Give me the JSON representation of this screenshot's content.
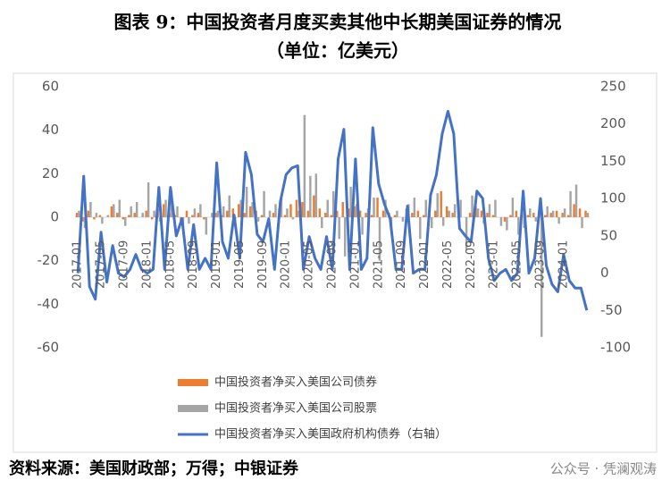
{
  "chart_data": {
    "type": "bar",
    "title": "图表 9：中国投资者月度买卖其他中长期美国证券的情况",
    "subtitle": "（单位：亿美元）",
    "source": "资料来源：美国财政部；万得；中银证券",
    "watermark": "公众号 · 凭澜观涛",
    "categories": [
      "2017-01",
      null,
      null,
      null,
      "2017-05",
      null,
      null,
      null,
      "2017-09",
      null,
      null,
      null,
      "2018-01",
      null,
      null,
      null,
      "2018-05",
      null,
      null,
      null,
      "2018-09",
      null,
      null,
      null,
      "2019-01",
      null,
      null,
      null,
      "2019-05",
      null,
      null,
      null,
      "2019-09",
      null,
      null,
      null,
      "2020-01",
      null,
      null,
      null,
      "2020-05",
      null,
      null,
      null,
      "2020-09",
      null,
      null,
      null,
      "2021-01",
      null,
      null,
      null,
      "2021-05",
      null,
      null,
      null,
      "2021-09",
      null,
      null,
      null,
      "2022-01",
      null,
      null,
      null,
      "2022-05",
      null,
      null,
      null,
      "2022-09",
      null,
      null,
      null,
      "2023-01",
      null,
      null,
      null,
      "2023-05",
      null,
      null,
      null,
      "2023-09",
      null,
      null,
      null,
      "2024-01",
      null,
      null,
      null,
      null
    ],
    "series": [
      {
        "name": "中国投资者净买入美国公司债券",
        "type": "bar",
        "color": "#ed7d31",
        "values": [
          2,
          -2,
          3,
          -1,
          1,
          0,
          5,
          2,
          -1,
          1,
          2,
          0,
          3,
          -1,
          4,
          6,
          2,
          1,
          -2,
          3,
          1,
          2,
          -1,
          0,
          2,
          1,
          3,
          4,
          6,
          2,
          5,
          3,
          1,
          0,
          2,
          4,
          1,
          6,
          8,
          7,
          3,
          10,
          4,
          2,
          1,
          3,
          7,
          4,
          5,
          3,
          2,
          1,
          9,
          3,
          2,
          1,
          0,
          4,
          2,
          3,
          1,
          2,
          3,
          12,
          5,
          2,
          1,
          0,
          2,
          5,
          3,
          2,
          1,
          0,
          -2,
          1,
          3,
          2,
          1,
          2,
          3,
          1,
          2,
          3,
          2,
          1,
          6,
          4,
          3
        ]
      },
      {
        "name": "中国投资者净买入美国公司股票",
        "type": "bar",
        "color": "#a5a5a5",
        "values": [
          3,
          -5,
          7,
          2,
          -3,
          1,
          6,
          8,
          -4,
          5,
          7,
          2,
          16,
          3,
          -2,
          8,
          12,
          5,
          -6,
          -3,
          4,
          6,
          -8,
          2,
          3,
          5,
          10,
          -3,
          8,
          14,
          7,
          -2,
          12,
          3,
          6,
          10,
          4,
          -1,
          3,
          47,
          19,
          20,
          -5,
          8,
          12,
          -10,
          -18,
          14,
          6,
          -8,
          4,
          9,
          -20,
          8,
          -6,
          3,
          -2,
          6,
          9,
          -10,
          8,
          -5,
          11,
          -4,
          3,
          6,
          8,
          -15,
          10,
          4,
          -3,
          6,
          8,
          -4,
          -6,
          9,
          -8,
          -5,
          4,
          -2,
          -55,
          5,
          3,
          -3,
          4,
          12,
          15,
          -5,
          2
        ]
      },
      {
        "name": "中国投资者净买入美国政府机构债券（右轴）",
        "type": "line",
        "axis": "y2",
        "color": "#4472c4",
        "values": [
          0,
          130,
          -18,
          -35,
          55,
          -12,
          37,
          0,
          -5,
          5,
          25,
          5,
          0,
          5,
          115,
          5,
          115,
          50,
          73,
          5,
          65,
          5,
          20,
          5,
          148,
          42,
          20,
          78,
          20,
          162,
          132,
          52,
          42,
          73,
          5,
          96,
          132,
          141,
          144,
          5,
          49,
          20,
          5,
          49,
          5,
          153,
          193,
          5,
          153,
          5,
          20,
          195,
          120,
          93,
          73,
          5,
          5,
          90,
          0,
          5,
          5,
          105,
          132,
          187,
          217,
          187,
          60,
          50,
          42,
          110,
          100,
          20,
          -10,
          0,
          5,
          -10,
          0,
          110,
          0,
          20,
          100,
          10,
          -15,
          -25,
          25,
          -10,
          -20,
          -20,
          -50
        ]
      }
    ],
    "ylim": [
      -60,
      60
    ],
    "yticks": [
      -60,
      -40,
      -20,
      0,
      20,
      40,
      60
    ],
    "y2lim": [
      -100,
      250
    ],
    "y2ticks": [
      -100,
      -50,
      0,
      50,
      100,
      150,
      200,
      250
    ]
  }
}
